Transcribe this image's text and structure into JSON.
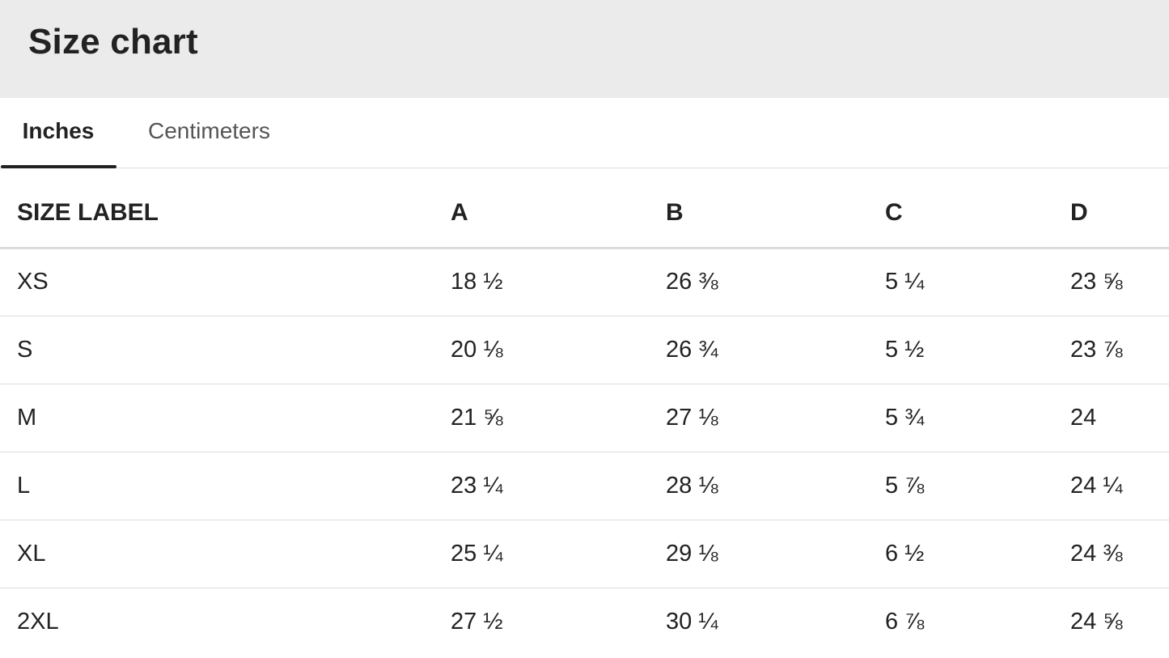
{
  "header": {
    "title": "Size chart"
  },
  "tabs": [
    {
      "label": "Inches",
      "active": true
    },
    {
      "label": "Centimeters",
      "active": false
    }
  ],
  "table": {
    "columns": [
      "SIZE LABEL",
      "A",
      "B",
      "C",
      "D"
    ],
    "rows": [
      [
        "XS",
        "18 ½",
        "26 ⅜",
        "5 ¼",
        "23 ⅝"
      ],
      [
        "S",
        "20 ⅛",
        "26 ¾",
        "5 ½",
        "23 ⅞"
      ],
      [
        "M",
        "21 ⅝",
        "27 ⅛",
        "5 ¾",
        "24"
      ],
      [
        "L",
        "23 ¼",
        "28 ⅛",
        "5 ⅞",
        "24 ¼"
      ],
      [
        "XL",
        "25 ¼",
        "29 ⅛",
        "6 ½",
        "24 ⅜"
      ],
      [
        "2XL",
        "27 ½",
        "30 ¼",
        "6 ⅞",
        "24 ⅝"
      ]
    ]
  },
  "colors": {
    "header_bg": "#ebebeb",
    "text": "#222222",
    "inactive_tab": "#555555",
    "divider": "#dcdcdc"
  }
}
